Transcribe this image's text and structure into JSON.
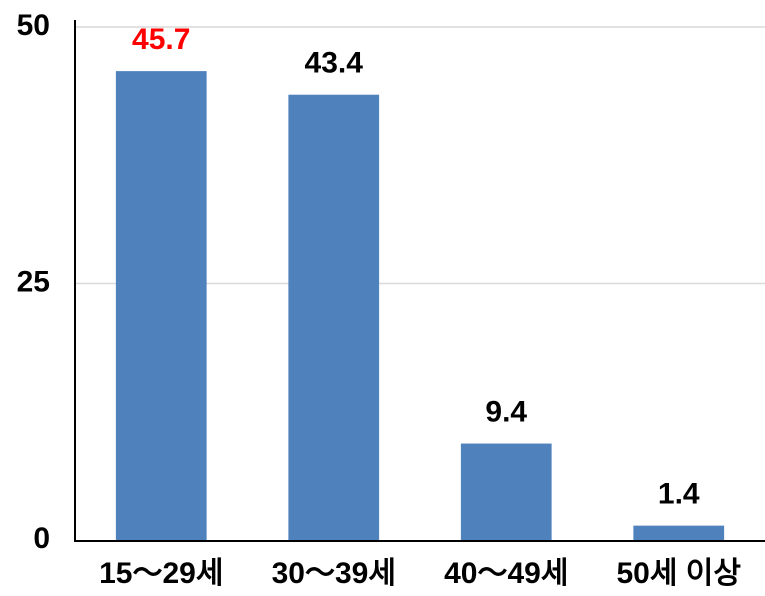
{
  "chart_data": {
    "type": "bar",
    "categories": [
      "15～29세",
      "30～39세",
      "40～49세",
      "50세 이상"
    ],
    "values": [
      45.7,
      43.4,
      9.4,
      1.4
    ],
    "color": "#4f81bd",
    "label_colors": [
      "#ff0000",
      "#000000",
      "#000000",
      "#000000"
    ],
    "ylim": [
      0,
      50
    ],
    "yticks": [
      0,
      25,
      50
    ],
    "grid": true
  }
}
